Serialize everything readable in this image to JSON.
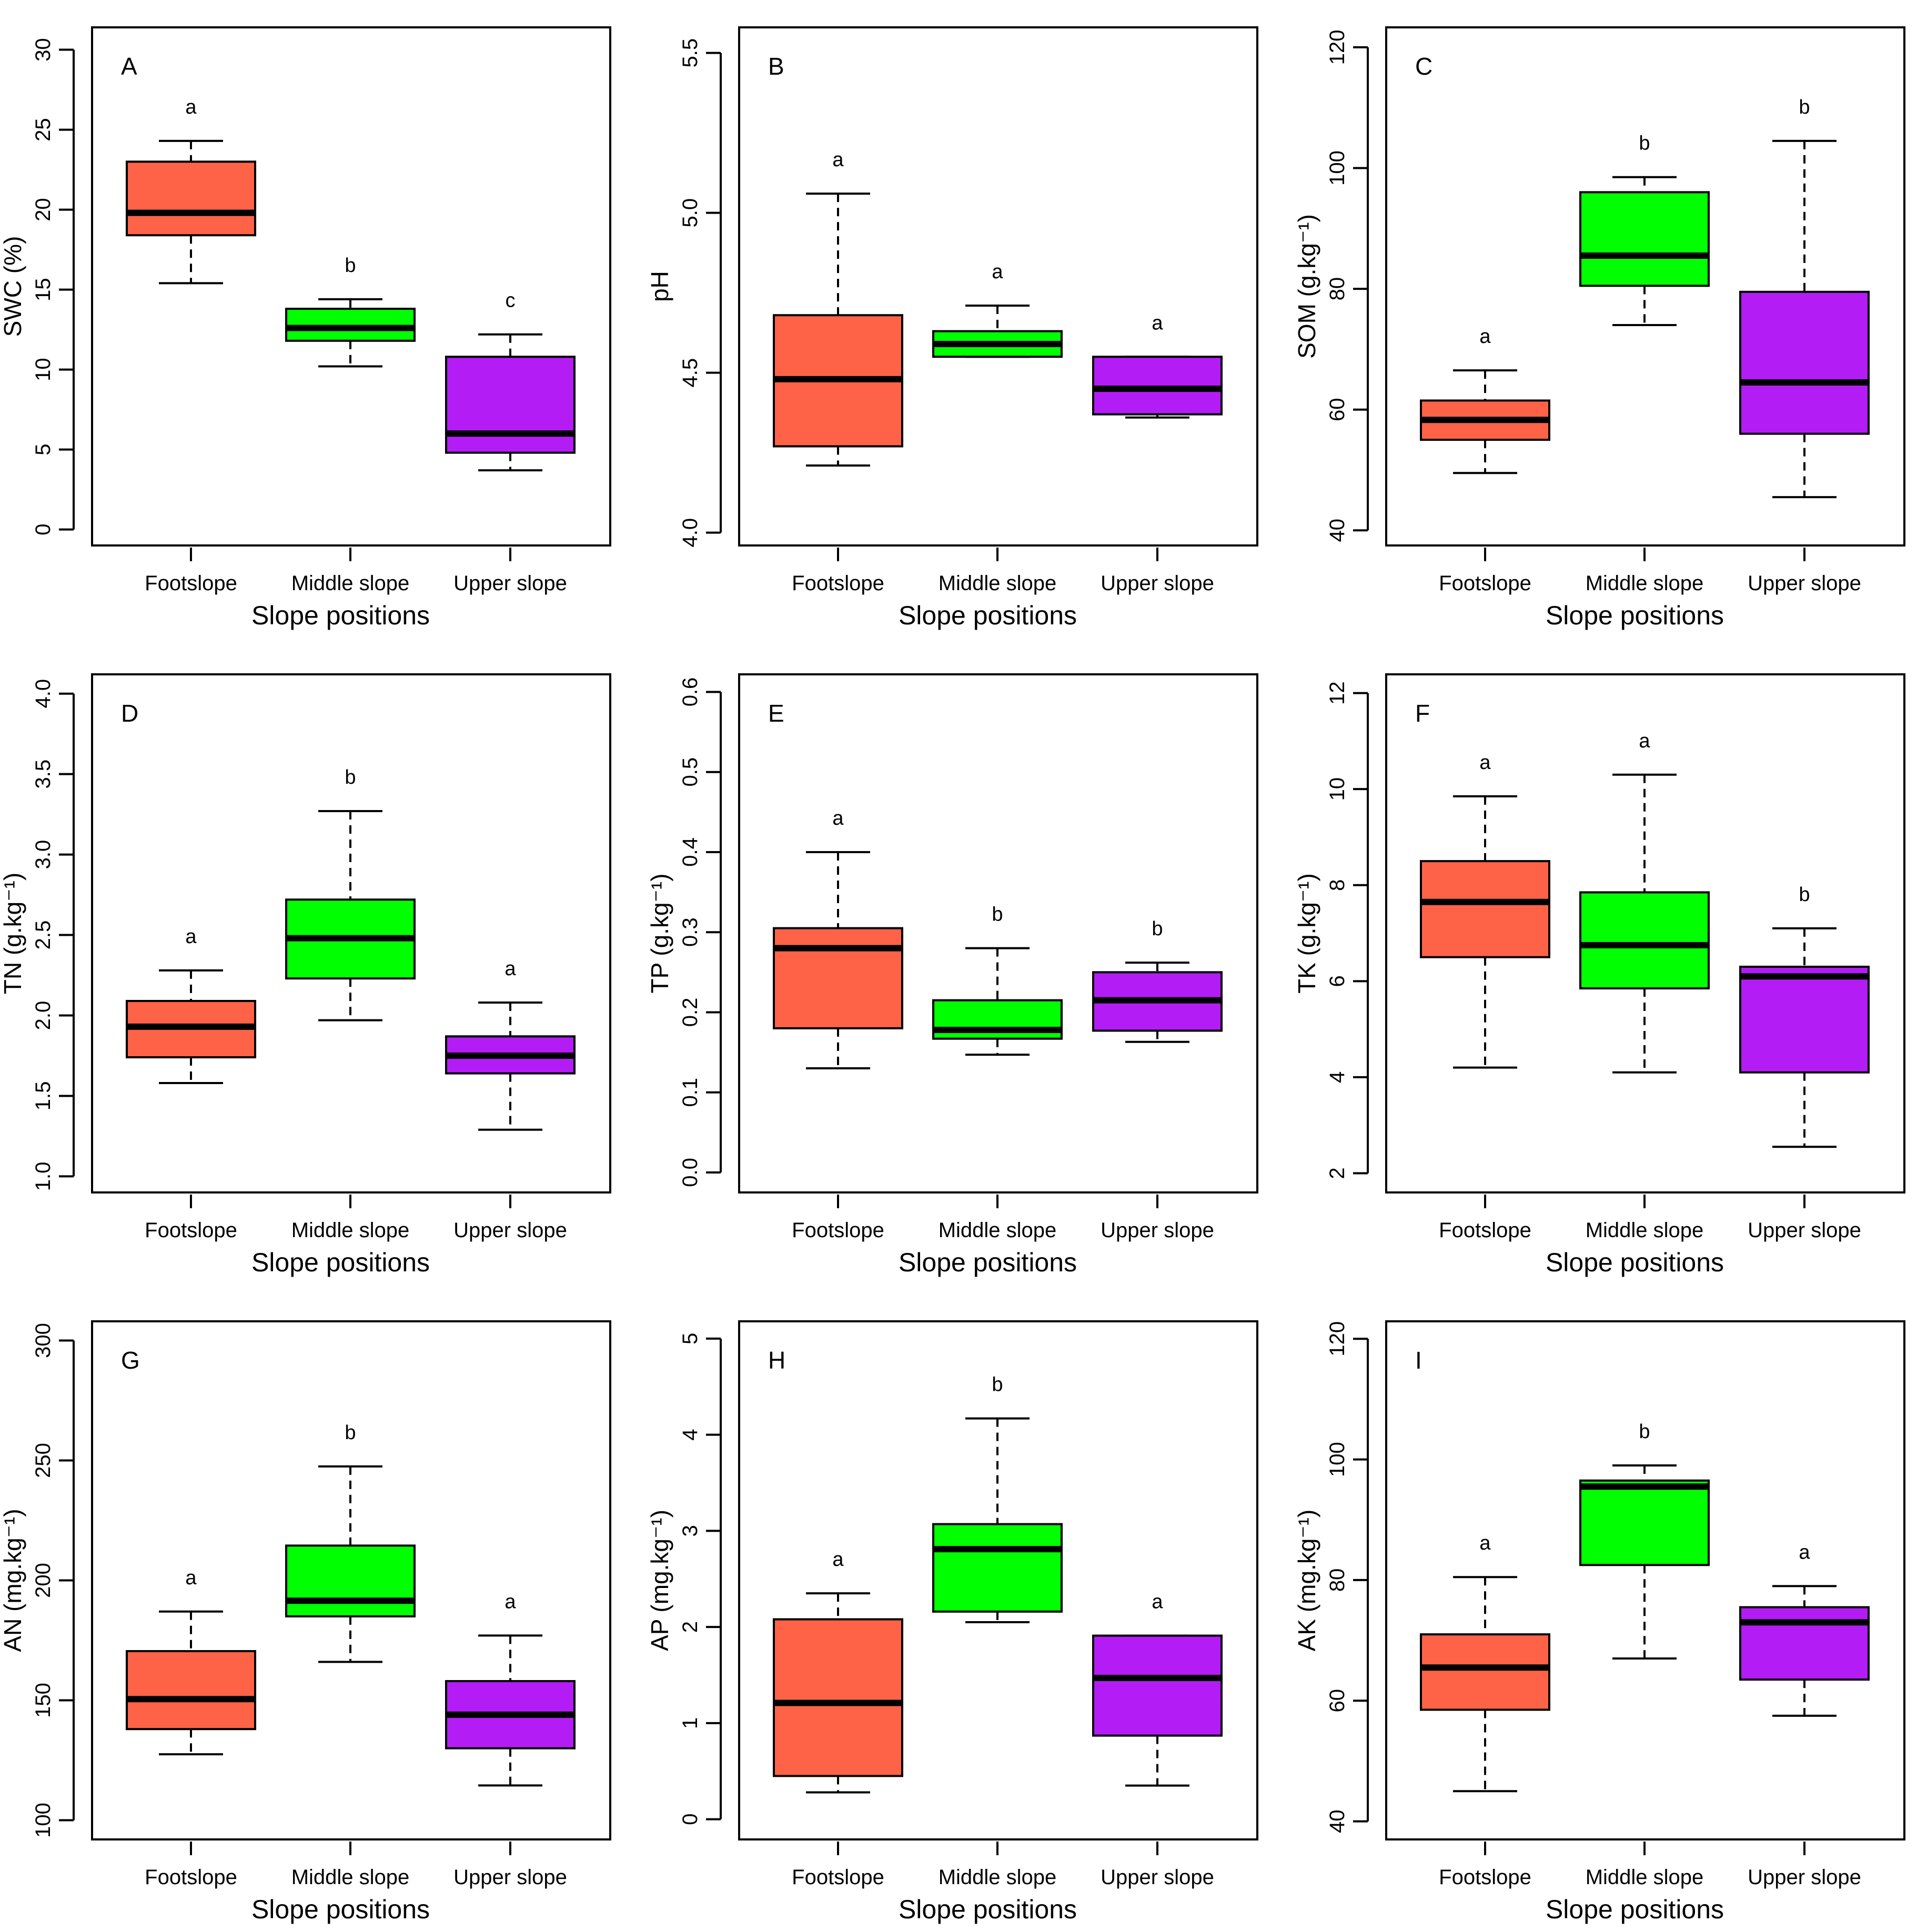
{
  "chart_data": [
    {
      "type": "box",
      "panel": "A",
      "ylabel": "SWC (%)",
      "xlabel": "Slope positions",
      "categories": [
        "Footslope",
        "Middle slope",
        "Upper slope"
      ],
      "ylim": [
        -1,
        31.4
      ],
      "yticks": [
        "0",
        "5",
        "10",
        "15",
        "20",
        "25",
        "30"
      ],
      "ytick_values": [
        0,
        5,
        10,
        15,
        20,
        25,
        30
      ],
      "boxes": [
        {
          "min": 15.4,
          "q1": 18.4,
          "median": 19.8,
          "q3": 23.0,
          "max": 24.3,
          "sig": "a"
        },
        {
          "min": 10.2,
          "q1": 11.8,
          "median": 12.6,
          "q3": 13.8,
          "max": 14.4,
          "sig": "b"
        },
        {
          "min": 3.7,
          "q1": 4.8,
          "median": 6.0,
          "q3": 10.8,
          "max": 12.2,
          "sig": "c"
        }
      ]
    },
    {
      "type": "box",
      "panel": "B",
      "ylabel": "pH",
      "xlabel": "Slope positions",
      "categories": [
        "Footslope",
        "Middle slope",
        "Upper slope"
      ],
      "ylim": [
        3.96,
        5.58
      ],
      "yticks": [
        "4.0",
        "4.5",
        "5.0",
        "5.5"
      ],
      "ytick_values": [
        4.0,
        4.5,
        5.0,
        5.5
      ],
      "boxes": [
        {
          "min": 4.21,
          "q1": 4.27,
          "median": 4.48,
          "q3": 4.68,
          "max": 5.06,
          "sig": "a"
        },
        {
          "min": 4.55,
          "q1": 4.55,
          "median": 4.59,
          "q3": 4.63,
          "max": 4.71,
          "sig": "a"
        },
        {
          "min": 4.36,
          "q1": 4.37,
          "median": 4.45,
          "q3": 4.55,
          "max": 4.55,
          "sig": "a"
        }
      ]
    },
    {
      "type": "box",
      "panel": "C",
      "ylabel": "SOM (g.kg⁻¹)",
      "xlabel": "Slope positions",
      "categories": [
        "Footslope",
        "Middle slope",
        "Upper slope"
      ],
      "ylim": [
        37.5,
        123.3
      ],
      "yticks": [
        "40",
        "60",
        "80",
        "100",
        "120"
      ],
      "ytick_values": [
        40,
        60,
        80,
        100,
        120
      ],
      "boxes": [
        {
          "min": 49.5,
          "q1": 55.0,
          "median": 58.3,
          "q3": 61.5,
          "max": 66.5,
          "sig": "a"
        },
        {
          "min": 74.0,
          "q1": 80.5,
          "median": 85.5,
          "q3": 96.0,
          "max": 98.5,
          "sig": "b"
        },
        {
          "min": 45.5,
          "q1": 56.0,
          "median": 64.5,
          "q3": 79.5,
          "max": 104.5,
          "sig": "b"
        }
      ]
    },
    {
      "type": "box",
      "panel": "D",
      "ylabel": "TN (g.kg⁻¹)",
      "xlabel": "Slope positions",
      "categories": [
        "Footslope",
        "Middle slope",
        "Upper slope"
      ],
      "ylim": [
        0.9,
        4.12
      ],
      "yticks": [
        "1.0",
        "1.5",
        "2.0",
        "2.5",
        "3.0",
        "3.5",
        "4.0"
      ],
      "ytick_values": [
        1.0,
        1.5,
        2.0,
        2.5,
        3.0,
        3.5,
        4.0
      ],
      "boxes": [
        {
          "min": 1.58,
          "q1": 1.74,
          "median": 1.93,
          "q3": 2.09,
          "max": 2.28,
          "sig": "a"
        },
        {
          "min": 1.97,
          "q1": 2.23,
          "median": 2.48,
          "q3": 2.72,
          "max": 3.27,
          "sig": "b"
        },
        {
          "min": 1.29,
          "q1": 1.64,
          "median": 1.75,
          "q3": 1.87,
          "max": 2.08,
          "sig": "a"
        }
      ]
    },
    {
      "type": "box",
      "panel": "E",
      "ylabel": "TP (g.kg⁻¹)",
      "xlabel": "Slope positions",
      "categories": [
        "Footslope",
        "Middle slope",
        "Upper slope"
      ],
      "ylim": [
        -0.025,
        0.622
      ],
      "yticks": [
        "0.0",
        "0.1",
        "0.2",
        "0.3",
        "0.4",
        "0.5",
        "0.6"
      ],
      "ytick_values": [
        0.0,
        0.1,
        0.2,
        0.3,
        0.4,
        0.5,
        0.6
      ],
      "boxes": [
        {
          "min": 0.13,
          "q1": 0.18,
          "median": 0.28,
          "q3": 0.305,
          "max": 0.4,
          "sig": "a"
        },
        {
          "min": 0.147,
          "q1": 0.167,
          "median": 0.178,
          "q3": 0.215,
          "max": 0.28,
          "sig": "b"
        },
        {
          "min": 0.163,
          "q1": 0.177,
          "median": 0.215,
          "q3": 0.25,
          "max": 0.262,
          "sig": "b"
        }
      ]
    },
    {
      "type": "box",
      "panel": "F",
      "ylabel": "TK (g.kg⁻¹)",
      "xlabel": "Slope positions",
      "categories": [
        "Footslope",
        "Middle slope",
        "Upper slope"
      ],
      "ylim": [
        1.6,
        12.39
      ],
      "yticks": [
        "2",
        "4",
        "6",
        "8",
        "10",
        "12"
      ],
      "ytick_values": [
        2,
        4,
        6,
        8,
        10,
        12
      ],
      "boxes": [
        {
          "min": 4.2,
          "q1": 6.5,
          "median": 7.65,
          "q3": 8.5,
          "max": 9.85,
          "sig": "a"
        },
        {
          "min": 4.1,
          "q1": 5.85,
          "median": 6.75,
          "q3": 7.85,
          "max": 10.3,
          "sig": "a"
        },
        {
          "min": 2.55,
          "q1": 4.1,
          "median": 6.1,
          "q3": 6.3,
          "max": 7.1,
          "sig": "b"
        }
      ]
    },
    {
      "type": "box",
      "panel": "G",
      "ylabel": "AN (mg.kg⁻¹)",
      "xlabel": "Slope positions",
      "categories": [
        "Footslope",
        "Middle slope",
        "Upper slope"
      ],
      "ylim": [
        92,
        308
      ],
      "yticks": [
        "100",
        "150",
        "200",
        "250",
        "300"
      ],
      "ytick_values": [
        100,
        150,
        200,
        250,
        300
      ],
      "boxes": [
        {
          "min": 127.5,
          "q1": 138.0,
          "median": 150.5,
          "q3": 170.5,
          "max": 187.0,
          "sig": "a"
        },
        {
          "min": 166.0,
          "q1": 185.0,
          "median": 191.5,
          "q3": 214.5,
          "max": 247.5,
          "sig": "b"
        },
        {
          "min": 114.5,
          "q1": 130.0,
          "median": 144.0,
          "q3": 158.0,
          "max": 177.0,
          "sig": "a"
        }
      ]
    },
    {
      "type": "box",
      "panel": "H",
      "ylabel": "AP (mg.kg⁻¹)",
      "xlabel": "Slope positions",
      "categories": [
        "Footslope",
        "Middle slope",
        "Upper slope"
      ],
      "ylim": [
        -0.21,
        5.18
      ],
      "yticks": [
        "0",
        "1",
        "2",
        "3",
        "4",
        "5"
      ],
      "ytick_values": [
        0,
        1,
        2,
        3,
        4,
        5
      ],
      "boxes": [
        {
          "min": 0.28,
          "q1": 0.45,
          "median": 1.21,
          "q3": 2.08,
          "max": 2.35,
          "sig": "a"
        },
        {
          "min": 2.05,
          "q1": 2.16,
          "median": 2.81,
          "q3": 3.07,
          "max": 4.17,
          "sig": "b"
        },
        {
          "min": 0.35,
          "q1": 0.87,
          "median": 1.47,
          "q3": 1.91,
          "max": 1.91,
          "sig": "a"
        }
      ]
    },
    {
      "type": "box",
      "panel": "I",
      "ylabel": "AK (mg.kg⁻¹)",
      "xlabel": "Slope positions",
      "categories": [
        "Footslope",
        "Middle slope",
        "Upper slope"
      ],
      "ylim": [
        37,
        122.9
      ],
      "yticks": [
        "40",
        "60",
        "80",
        "100",
        "120"
      ],
      "ytick_values": [
        40,
        60,
        80,
        100,
        120
      ],
      "boxes": [
        {
          "min": 45.0,
          "q1": 58.5,
          "median": 65.5,
          "q3": 71.0,
          "max": 80.5,
          "sig": "a"
        },
        {
          "min": 67.0,
          "q1": 82.5,
          "median": 95.5,
          "q3": 96.5,
          "max": 99.0,
          "sig": "b"
        },
        {
          "min": 57.5,
          "q1": 63.5,
          "median": 73.0,
          "q3": 75.5,
          "max": 79.0,
          "sig": "a"
        }
      ]
    }
  ],
  "colors": {
    "footslope": "#ff6347",
    "middle_slope": "#00ff00",
    "upper_slope": "#b41cf6",
    "outline": "#000000"
  }
}
